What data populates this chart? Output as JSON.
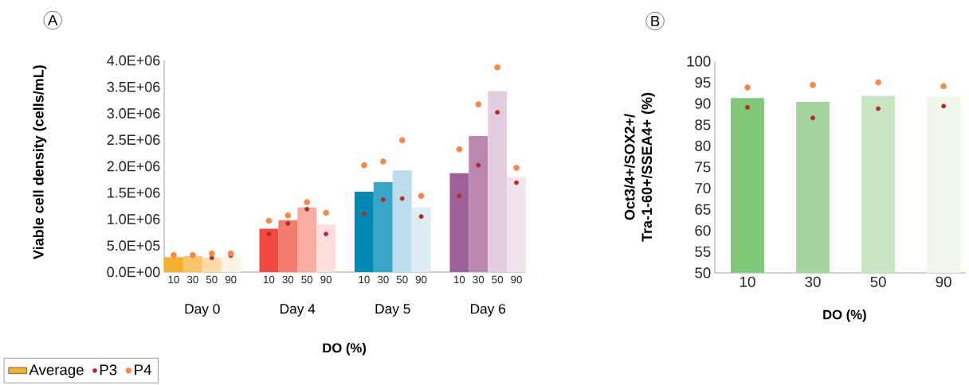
{
  "chart_data": [
    {
      "type": "bar",
      "title": "A",
      "xlabel": "DO (%)",
      "ylabel": "Viable cell density (cells/mL)",
      "categories": [
        "10",
        "30",
        "50",
        "90",
        "10",
        "30",
        "50",
        "90",
        "10",
        "30",
        "50",
        "90",
        "10",
        "30",
        "50",
        "90"
      ],
      "annotations": [
        "Day 0",
        "Day 4",
        "Day 5",
        "Day 6"
      ],
      "ylim": [
        0,
        4000000
      ],
      "yticks": [
        {
          "value": 0,
          "label": "0.0E+00"
        },
        {
          "value": 500000,
          "label": "5.0E+05"
        },
        {
          "value": 1000000,
          "label": "1.0E+06"
        },
        {
          "value": 1500000,
          "label": "1.5E+06"
        },
        {
          "value": 2000000,
          "label": "2.0E+06"
        },
        {
          "value": 2500000,
          "label": "2.5E+06"
        },
        {
          "value": 3000000,
          "label": "3.0E+06"
        },
        {
          "value": 3500000,
          "label": "3.5E+06"
        },
        {
          "value": 4000000,
          "label": "4.0E+06"
        }
      ],
      "marker": "circle",
      "legend": "bottom left",
      "series": [
        {
          "name": "Average",
          "type": "bar",
          "colors": [
            "#f5b032",
            "#fbc46b",
            "#fedba8",
            "#fef3e0",
            "#ef4a3f",
            "#f37d6c",
            "#f7aea0",
            "#fde0dc",
            "#0089b3",
            "#37a6c8",
            "#bcdeec",
            "#ddedf4",
            "#9e6096",
            "#b987b0",
            "#e4cde1",
            "#f1e4ef"
          ],
          "values": [
            280000,
            300000,
            270000,
            300000,
            820000,
            980000,
            1220000,
            900000,
            1520000,
            1700000,
            1920000,
            1220000,
            1870000,
            2570000,
            3420000,
            1800000
          ]
        },
        {
          "name": "P3",
          "type": "scatter",
          "color": "#b22a2a",
          "values": [
            null,
            null,
            270000,
            310000,
            720000,
            920000,
            1190000,
            720000,
            1100000,
            1370000,
            1390000,
            1050000,
            1440000,
            2020000,
            3020000,
            1690000
          ]
        },
        {
          "name": "P4",
          "type": "scatter",
          "color": "#f4894b",
          "values": [
            320000,
            320000,
            350000,
            350000,
            970000,
            1070000,
            1320000,
            1120000,
            2020000,
            2090000,
            2490000,
            1440000,
            2320000,
            3170000,
            3870000,
            1970000
          ]
        }
      ]
    },
    {
      "type": "bar",
      "title": "B",
      "xlabel": "DO (%)",
      "ylabel": "Oct3/4+/SOX2+/Tra-1-60+/SSEA4+ (%)",
      "categories": [
        "10",
        "30",
        "50",
        "90"
      ],
      "ylim": [
        50,
        100
      ],
      "yticks": [
        50,
        55,
        60,
        65,
        70,
        75,
        80,
        85,
        90,
        95,
        100
      ],
      "marker": "circle",
      "series": [
        {
          "type": "bar",
          "colors": [
            "#7fc87a",
            "#a3d59d",
            "#c8e6c2",
            "#eef7ea"
          ],
          "values": [
            91.3,
            90.4,
            91.8,
            91.6
          ]
        },
        {
          "type": "scatter",
          "color": "#b22a2a",
          "values": [
            89.1,
            86.6,
            88.8,
            89.4
          ]
        },
        {
          "type": "scatter",
          "color": "#f4894b",
          "values": [
            93.8,
            94.4,
            95.0,
            94.1
          ]
        }
      ]
    }
  ]
}
